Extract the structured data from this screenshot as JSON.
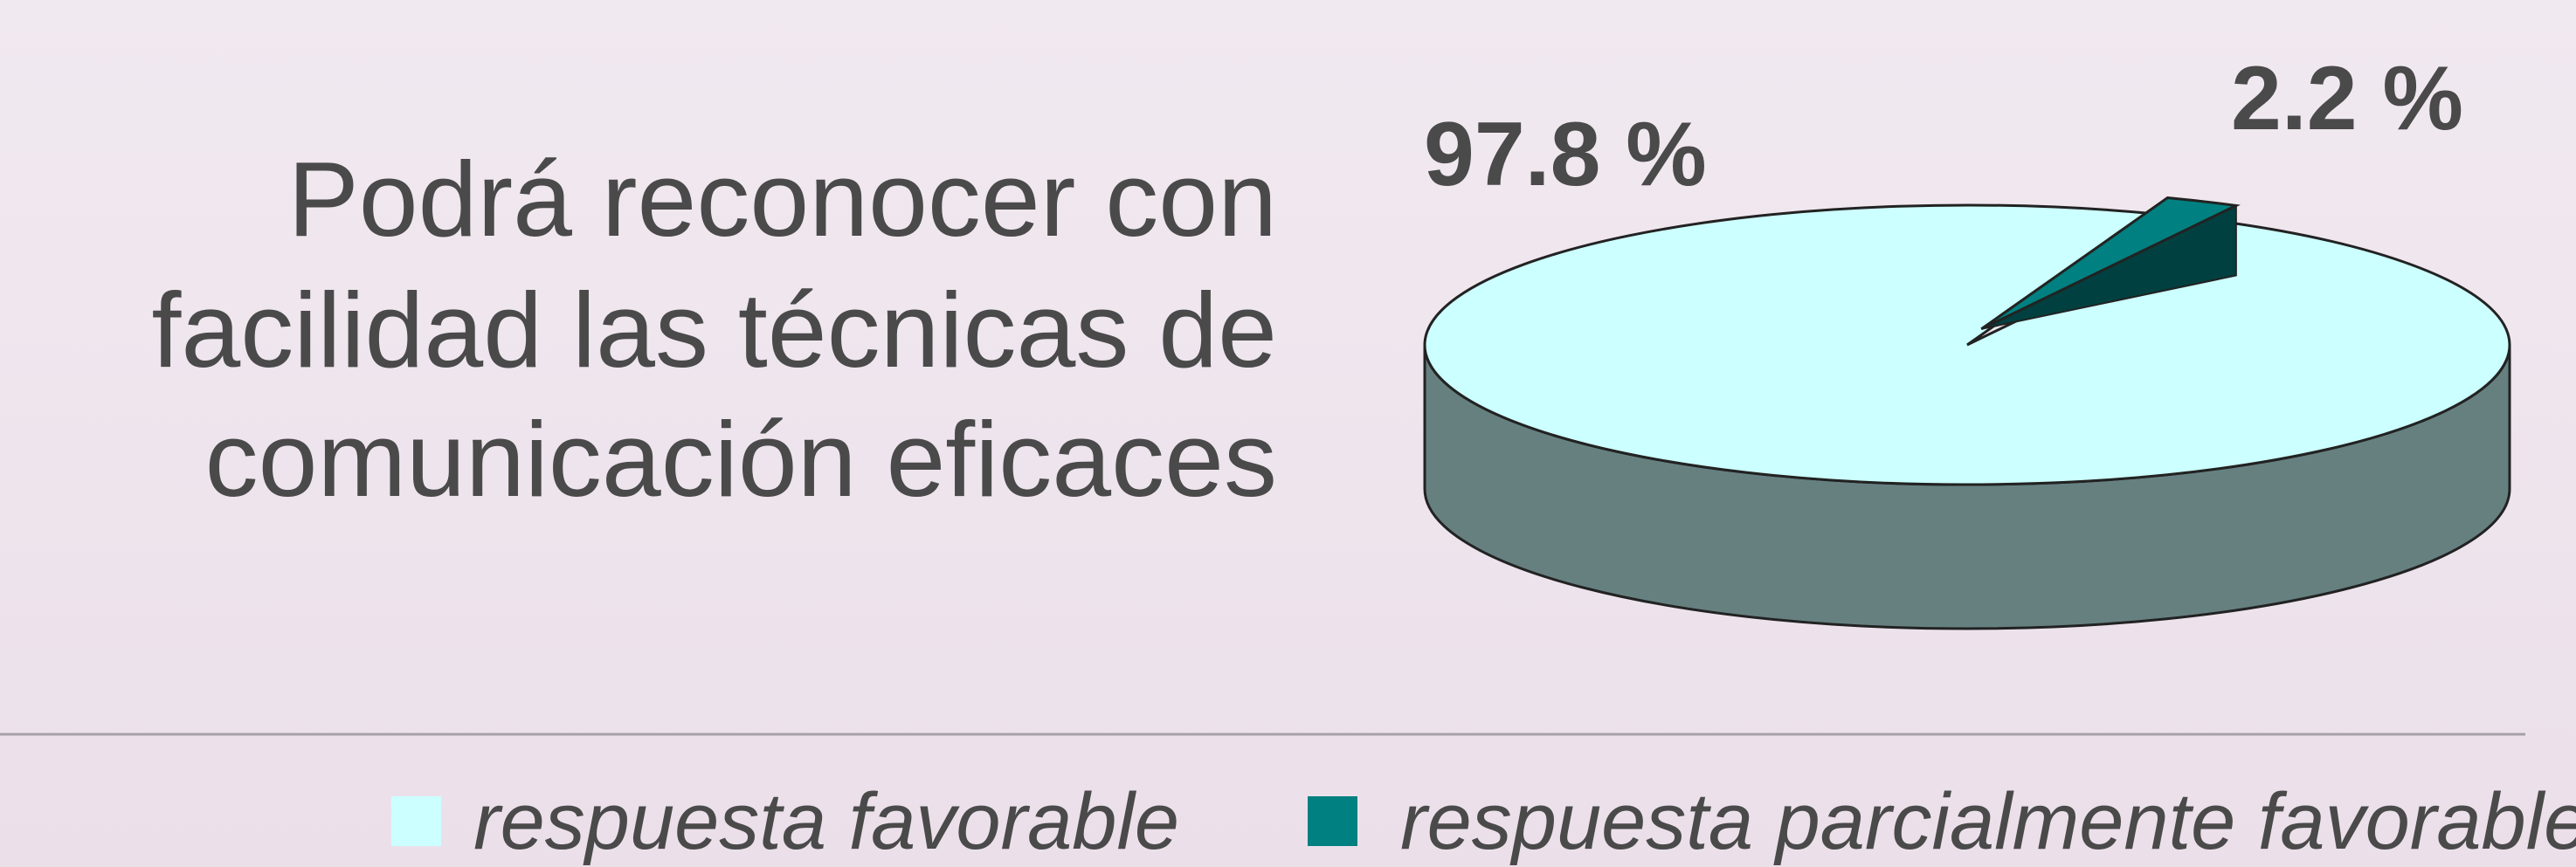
{
  "chart_data": {
    "type": "pie",
    "title": [
      "Podrá reconocer con",
      "facilidad las técnicas de",
      "comunicación eficaces"
    ],
    "categories": [
      "respuesta favorable",
      "respuesta parcialmente favorable"
    ],
    "values": [
      97.8,
      2.2
    ],
    "value_labels": [
      "97.8 %",
      "2.2 %"
    ],
    "colors": [
      "#ccffff",
      "#008080"
    ],
    "legend": "bottom"
  }
}
